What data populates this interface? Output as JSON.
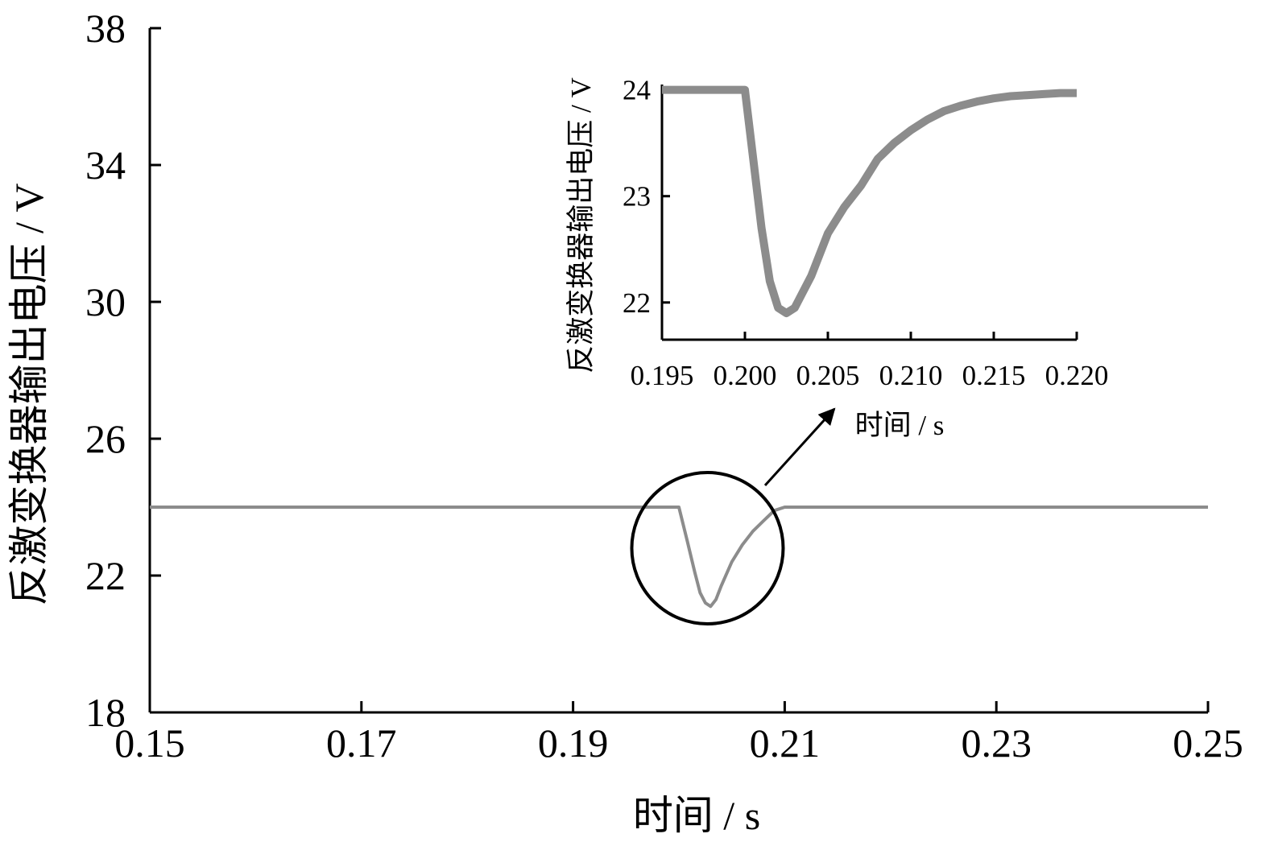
{
  "chart_data": [
    {
      "type": "line",
      "title": "",
      "xlabel": "时间 / s",
      "ylabel": "反激变换器输出电压 / V",
      "xlim": [
        0.15,
        0.25
      ],
      "ylim": [
        18,
        38
      ],
      "x_ticks": [
        "0.15",
        "0.17",
        "0.19",
        "0.21",
        "0.23",
        "0.25"
      ],
      "y_ticks": [
        "18",
        "22",
        "26",
        "30",
        "34",
        "38"
      ],
      "grid": false,
      "legend": "none",
      "series": [
        {
          "color": "#8c8c8c",
          "x": [
            0.15,
            0.17,
            0.19,
            0.1995,
            0.2,
            0.2008,
            0.2015,
            0.202,
            0.2025,
            0.203,
            0.2035,
            0.204,
            0.205,
            0.206,
            0.207,
            0.208,
            0.209,
            0.21,
            0.212,
            0.215,
            0.22,
            0.23,
            0.25
          ],
          "y": [
            24.0,
            24.0,
            24.0,
            24.0,
            24.0,
            23.0,
            22.1,
            21.5,
            21.2,
            21.1,
            21.3,
            21.7,
            22.4,
            22.9,
            23.3,
            23.6,
            23.9,
            24.0,
            24.0,
            24.0,
            24.0,
            24.0,
            24.0
          ]
        }
      ],
      "annotation": {
        "type": "circle",
        "center_x": 0.2027,
        "center_y": 22.8
      }
    },
    {
      "type": "line",
      "title": "",
      "xlabel": "时间 / s",
      "ylabel": "反激变换器输出电压 / V",
      "xlim": [
        0.195,
        0.22
      ],
      "ylim": [
        21.65,
        24.05
      ],
      "x_ticks": [
        "0.195",
        "0.200",
        "0.205",
        "0.210",
        "0.215",
        "0.220"
      ],
      "y_ticks": [
        "22",
        "23",
        "24"
      ],
      "grid": false,
      "legend": "none",
      "series": [
        {
          "color": "#8c8c8c",
          "x": [
            0.195,
            0.197,
            0.199,
            0.2,
            0.2005,
            0.201,
            0.2015,
            0.202,
            0.2025,
            0.203,
            0.204,
            0.205,
            0.206,
            0.207,
            0.208,
            0.209,
            0.21,
            0.211,
            0.212,
            0.213,
            0.214,
            0.215,
            0.216,
            0.217,
            0.218,
            0.219,
            0.22
          ],
          "y": [
            24.0,
            24.0,
            24.0,
            24.0,
            23.35,
            22.7,
            22.2,
            21.95,
            21.9,
            21.95,
            22.25,
            22.65,
            22.9,
            23.1,
            23.35,
            23.5,
            23.62,
            23.72,
            23.8,
            23.85,
            23.89,
            23.92,
            23.94,
            23.95,
            23.96,
            23.97,
            23.97
          ]
        }
      ]
    }
  ]
}
